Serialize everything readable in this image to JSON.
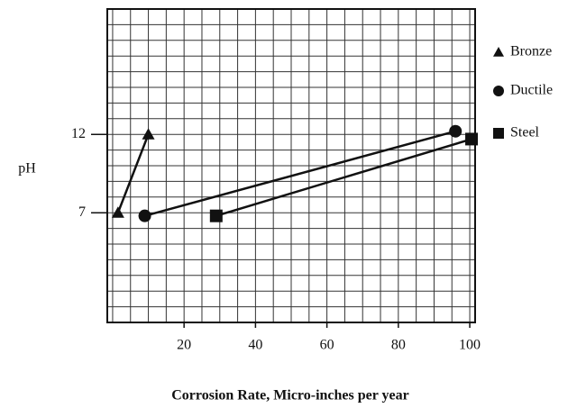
{
  "chart_data": {
    "type": "line",
    "xlabel": "Corrosion Rate, Micro-inches per year",
    "ylabel": "pH",
    "xlim": [
      -1.5,
      101.5
    ],
    "xticks": [
      20,
      40,
      60,
      80,
      100
    ],
    "ylim": [
      0,
      20
    ],
    "yticks": [
      7,
      12
    ],
    "grid": true,
    "legend": "right",
    "series": [
      {
        "name": "Bronze",
        "color": "#111111",
        "marker": "triangle",
        "x": [
          1.5,
          10
        ],
        "values": [
          7,
          12
        ]
      },
      {
        "name": "Ductile",
        "color": "#111111",
        "marker": "circle",
        "x": [
          9,
          96
        ],
        "values": [
          6.8,
          12.2
        ]
      },
      {
        "name": "Steel",
        "color": "#111111",
        "marker": "square",
        "x": [
          29,
          100.5
        ],
        "values": [
          6.8,
          11.7
        ]
      }
    ]
  }
}
